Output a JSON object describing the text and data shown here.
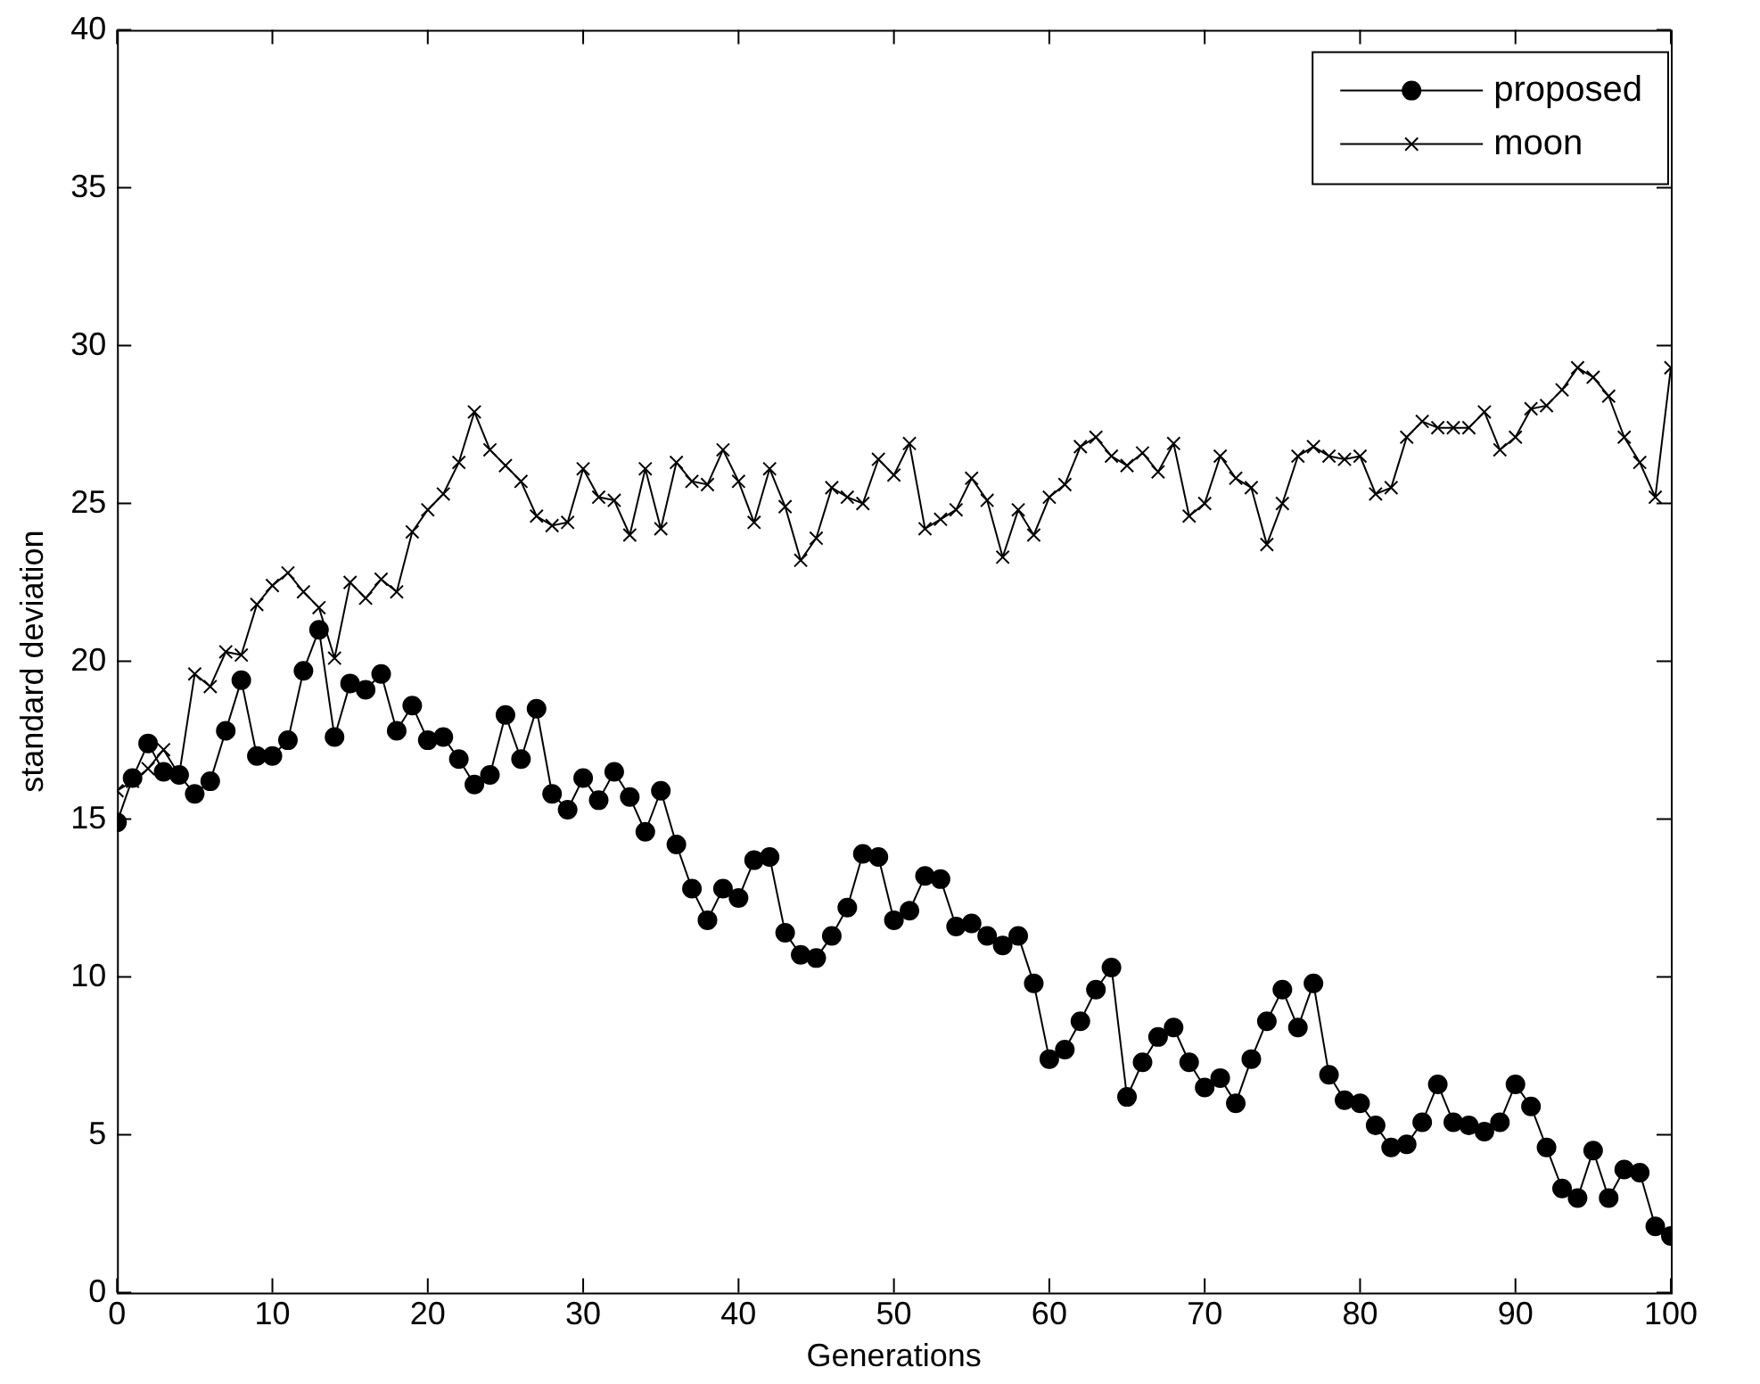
{
  "chart_data": {
    "type": "line",
    "xlabel": "Generations",
    "ylabel": "standard deviation",
    "x": [
      0,
      1,
      2,
      3,
      4,
      5,
      6,
      7,
      8,
      9,
      10,
      11,
      12,
      13,
      14,
      15,
      16,
      17,
      18,
      19,
      20,
      21,
      22,
      23,
      24,
      25,
      26,
      27,
      28,
      29,
      30,
      31,
      32,
      33,
      34,
      35,
      36,
      37,
      38,
      39,
      40,
      41,
      42,
      43,
      44,
      45,
      46,
      47,
      48,
      49,
      50,
      51,
      52,
      53,
      54,
      55,
      56,
      57,
      58,
      59,
      60,
      61,
      62,
      63,
      64,
      65,
      66,
      67,
      68,
      69,
      70,
      71,
      72,
      73,
      74,
      75,
      76,
      77,
      78,
      79,
      80,
      81,
      82,
      83,
      84,
      85,
      86,
      87,
      88,
      89,
      90,
      91,
      92,
      93,
      94,
      95,
      96,
      97,
      98,
      99,
      100
    ],
    "series": [
      {
        "name": "proposed",
        "color": "#000000",
        "marker": "circle",
        "values": [
          14.9,
          16.3,
          17.4,
          16.5,
          16.4,
          15.8,
          16.2,
          17.8,
          19.4,
          17.0,
          17.0,
          17.5,
          19.7,
          21.0,
          17.6,
          19.3,
          19.1,
          19.6,
          17.8,
          18.6,
          17.5,
          17.6,
          16.9,
          16.1,
          16.4,
          18.3,
          16.9,
          18.5,
          15.8,
          15.3,
          16.3,
          15.6,
          16.5,
          15.7,
          14.6,
          15.9,
          14.2,
          12.8,
          11.8,
          12.8,
          12.5,
          13.7,
          13.8,
          11.4,
          10.7,
          10.6,
          11.3,
          12.2,
          13.9,
          13.8,
          11.8,
          12.1,
          13.2,
          13.1,
          11.6,
          11.7,
          11.3,
          11.0,
          11.3,
          9.8,
          7.4,
          7.7,
          8.6,
          9.6,
          10.3,
          6.2,
          7.3,
          8.1,
          8.4,
          7.3,
          6.5,
          6.8,
          6.0,
          7.4,
          8.6,
          9.6,
          8.4,
          9.8,
          6.9,
          6.1,
          6.0,
          5.3,
          4.6,
          4.7,
          5.4,
          6.6,
          5.4,
          5.3,
          5.1,
          5.4,
          6.6,
          5.9,
          4.6,
          3.3,
          3.0,
          4.5,
          3.0,
          3.9,
          3.8,
          2.1,
          1.8
        ]
      },
      {
        "name": "moon",
        "color": "#000000",
        "marker": "cross",
        "values": [
          15.9,
          16.2,
          16.6,
          17.2,
          16.4,
          19.6,
          19.2,
          20.3,
          20.2,
          21.8,
          22.4,
          22.8,
          22.2,
          21.7,
          20.1,
          22.5,
          22.0,
          22.6,
          22.2,
          24.1,
          24.8,
          25.3,
          26.3,
          27.9,
          26.7,
          26.2,
          25.7,
          24.6,
          24.3,
          24.4,
          26.1,
          25.2,
          25.1,
          24.0,
          26.1,
          24.2,
          26.3,
          25.7,
          25.6,
          26.7,
          25.7,
          24.4,
          26.1,
          24.9,
          23.2,
          23.9,
          25.5,
          25.2,
          25.0,
          26.4,
          25.9,
          26.9,
          24.2,
          24.5,
          24.8,
          25.8,
          25.1,
          23.3,
          24.8,
          24.0,
          25.2,
          25.6,
          26.8,
          27.1,
          26.5,
          26.2,
          26.6,
          26.0,
          26.9,
          24.6,
          25.0,
          26.5,
          25.8,
          25.5,
          23.7,
          25.0,
          26.5,
          26.8,
          26.5,
          26.4,
          26.5,
          25.3,
          25.5,
          27.1,
          27.6,
          27.4,
          27.4,
          27.4,
          27.9,
          26.7,
          27.1,
          28.0,
          28.1,
          28.6,
          29.3,
          29.0,
          28.4,
          27.1,
          26.3,
          25.2,
          29.3
        ]
      }
    ],
    "xlim": [
      0,
      100
    ],
    "xticks": [
      0,
      10,
      20,
      30,
      40,
      50,
      60,
      70,
      80,
      90,
      100
    ],
    "ylim": [
      0,
      40
    ],
    "yticks": [
      0,
      5,
      10,
      15,
      20,
      25,
      30,
      35,
      40
    ],
    "grid": false,
    "legend": "top right",
    "line_style": "solid"
  }
}
